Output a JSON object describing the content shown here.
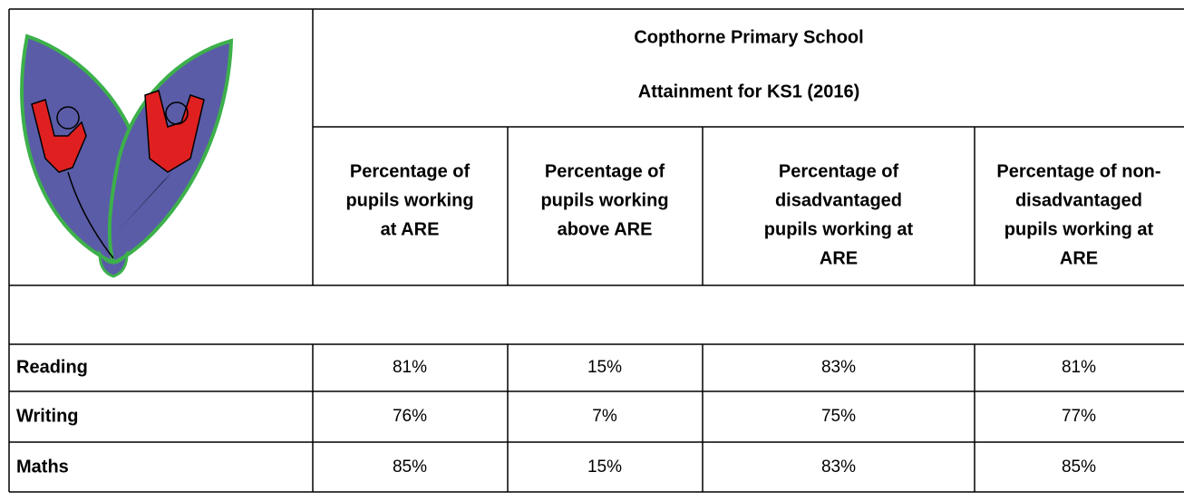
{
  "header": {
    "title_lines": [
      "Copthorne Primary School",
      "Attainment for KS1 (2016)"
    ]
  },
  "table": {
    "columns": [
      {
        "lines": [
          "Percentage of",
          "pupils working",
          "at ARE"
        ]
      },
      {
        "lines": [
          "Percentage of",
          "pupils working",
          "above ARE"
        ]
      },
      {
        "lines": [
          "Percentage of",
          "disadvantaged",
          "pupils working at",
          "ARE"
        ]
      },
      {
        "lines": [
          "Percentage of non-",
          "disadvantaged",
          "pupils working at",
          "ARE"
        ]
      }
    ],
    "rows": [
      {
        "label": "Reading",
        "cells": [
          "81%",
          "15%",
          "83%",
          "81%"
        ]
      },
      {
        "label": "Writing",
        "cells": [
          "76%",
          "7%",
          "75%",
          "77%"
        ]
      },
      {
        "label": "Maths",
        "cells": [
          "85%",
          "15%",
          "83%",
          "85%"
        ]
      }
    ]
  }
}
